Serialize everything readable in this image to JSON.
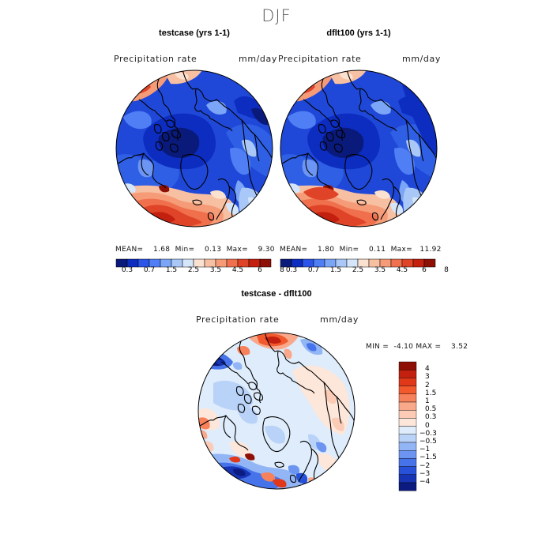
{
  "season": "DJF",
  "variable": "Precipitation rate",
  "units": "mm/day",
  "panels": [
    {
      "title": "testcase (yrs 1-1)",
      "mean_label": "MEAN=",
      "mean": "1.68",
      "min_label": "Min=",
      "min": "0.13",
      "max_label": "Max=",
      "max": "9.30"
    },
    {
      "title": "dflt100 (yrs 1-1)",
      "mean_label": "MEAN=",
      "mean": "1.80",
      "min_label": "Min=",
      "min": "0.11",
      "max_label": "Max=",
      "max": "11.92"
    }
  ],
  "diff": {
    "title": "testcase - dflt100",
    "min_label": "MIN =",
    "min": "-4.10",
    "max_label": "MAX =",
    "max": "3.52"
  },
  "abs_colorbar": {
    "colors": [
      "#0a1a7a",
      "#0c2dc0",
      "#2a55e8",
      "#4f7ef5",
      "#7ba5f7",
      "#a9c8f7",
      "#d5e6fb",
      "#fbe1d0",
      "#f8c0a2",
      "#f59b78",
      "#f0704d",
      "#e04428",
      "#c3200f",
      "#8e0f05"
    ],
    "ticks": [
      "0.3",
      "0.7",
      "1.5",
      "2.5",
      "3.5",
      "4.5",
      "6",
      "8"
    ]
  },
  "diff_colorbar": {
    "colors": [
      "#8e0f05",
      "#c3200f",
      "#e03818",
      "#f25a2e",
      "#f7815a",
      "#f9a88a",
      "#fbcbb5",
      "#fde7da",
      "#deecfb",
      "#b9d2f8",
      "#92b5f5",
      "#6b95f1",
      "#4673ea",
      "#2751d9",
      "#1634b3",
      "#0b1b80"
    ],
    "labels": [
      "4",
      "3",
      "2",
      "1.5",
      "1",
      "0.5",
      "0.3",
      "0",
      "−0.3",
      "−0.5",
      "−1",
      "−1.5",
      "−2",
      "−3",
      "−4"
    ]
  }
}
